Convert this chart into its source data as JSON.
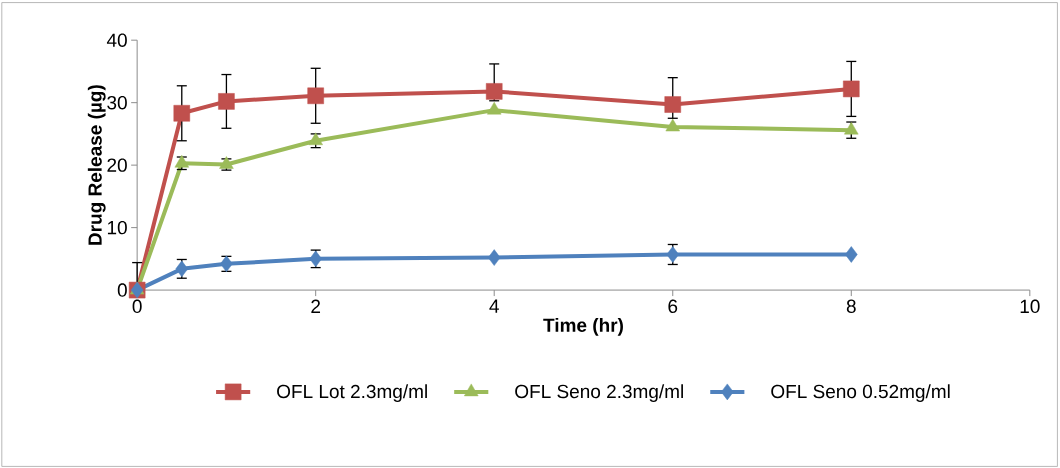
{
  "chart_data": {
    "type": "line",
    "xlabel": "Time (hr)",
    "ylabel": "Drug Release (µg)",
    "x": [
      0,
      0.5,
      1,
      2,
      4,
      6,
      8
    ],
    "xlim": [
      0,
      10
    ],
    "xticks": [
      0,
      2,
      4,
      6,
      8,
      10
    ],
    "ylim": [
      0,
      40
    ],
    "yticks": [
      0,
      10,
      20,
      30,
      40
    ],
    "series": [
      {
        "name": "OFL Lot 2.3mg/ml",
        "color": "#c0504d",
        "marker": "square",
        "values": [
          0,
          28.3,
          30.2,
          31.1,
          31.8,
          29.7,
          32.2
        ],
        "errors": [
          [
            0,
            4.4
          ],
          4.4,
          4.3,
          4.4,
          [
            30.3,
            36.2
          ],
          [
            27.5,
            34
          ],
          4.4
        ]
      },
      {
        "name": "OFL Seno 2.3mg/ml",
        "color": "#9bbb59",
        "marker": "triangle",
        "values": [
          0,
          20.3,
          20.1,
          23.9,
          28.8,
          26.1,
          25.6
        ],
        "errors": [
          null,
          1.0,
          0.9,
          1.1,
          null,
          null,
          1.3
        ]
      },
      {
        "name": "OFL Seno 0.52mg/ml",
        "color": "#4f81bd",
        "marker": "diamond",
        "values": [
          0,
          3.4,
          4.2,
          5.0,
          5.2,
          5.7,
          5.7
        ],
        "errors": [
          null,
          1.5,
          1.2,
          1.4,
          null,
          1.6,
          null
        ]
      }
    ],
    "grid": false,
    "legend": "bottom",
    "line_style": "solid"
  }
}
